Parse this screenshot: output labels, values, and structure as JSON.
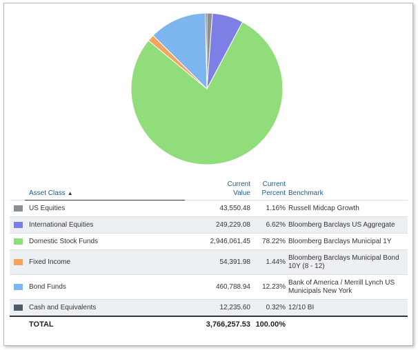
{
  "chart_data": {
    "type": "pie",
    "start_angle_deg": 0,
    "direction": "clockwise",
    "slices": [
      {
        "label": "US Equities",
        "value": 1.16,
        "color": "#8c9096"
      },
      {
        "label": "International Equities",
        "value": 6.62,
        "color": "#7d7fe5"
      },
      {
        "label": "Domestic Stock Funds",
        "value": 78.22,
        "color": "#92dd7b"
      },
      {
        "label": "Fixed Income",
        "value": 1.44,
        "color": "#f5a45c"
      },
      {
        "label": "Bond Funds",
        "value": 12.23,
        "color": "#7db5ee"
      },
      {
        "label": "Cash and Equivalents",
        "value": 0.32,
        "color": "#4f5b6b"
      }
    ]
  },
  "table": {
    "headers": {
      "asset_class": "Asset Class",
      "current_value": [
        "Current",
        "Value"
      ],
      "current_percent": [
        "Current",
        "Percent"
      ],
      "benchmark": "Benchmark"
    },
    "rows": [
      {
        "name": "US Equities",
        "value": "43,550.48",
        "percent": "1.16%",
        "benchmark": "Russell Midcap Growth",
        "color": "#8c9096"
      },
      {
        "name": "International Equities",
        "value": "249,229.08",
        "percent": "6.62%",
        "benchmark": "Bloomberg Barclays US Aggregate",
        "color": "#7d7fe5"
      },
      {
        "name": "Domestic Stock Funds",
        "value": "2,946,061.45",
        "percent": "78.22%",
        "benchmark": "Bloomberg Barclays Municipal 1Y",
        "color": "#92dd7b"
      },
      {
        "name": "Fixed Income",
        "value": "54,391.98",
        "percent": "1.44%",
        "benchmark": "Bloomberg Barclays Municipal Bond 10Y (8 - 12)",
        "color": "#f5a45c"
      },
      {
        "name": "Bond Funds",
        "value": "460,788.94",
        "percent": "12.23%",
        "benchmark": "Bank of America / Merrill Lynch US Municipals New York",
        "color": "#7db5ee"
      },
      {
        "name": "Cash and Equivalents",
        "value": "12,235.60",
        "percent": "0.32%",
        "benchmark": "12/10 BI",
        "color": "#4f5b6b"
      }
    ],
    "total": {
      "label": "TOTAL",
      "value": "3,766,257.53",
      "percent": "100.00%"
    }
  },
  "icons": {
    "sort": "sort-ascending-caret"
  },
  "colors": {
    "header_text": "#1e5a8a",
    "alt_row": "#edf0f3"
  }
}
